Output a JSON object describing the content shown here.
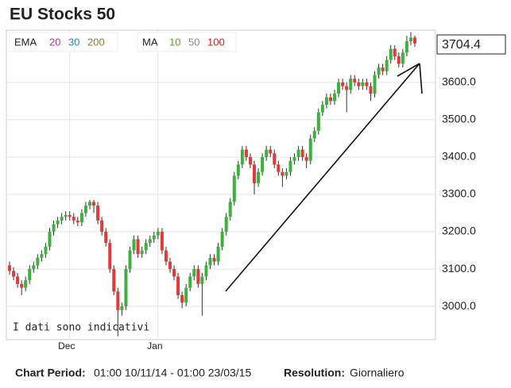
{
  "chart_data": {
    "type": "candlestick",
    "title": "EU Stocks 50",
    "categories": [
      null,
      null,
      null,
      null,
      null,
      null,
      null,
      null,
      null,
      null,
      null,
      null,
      null,
      null,
      null,
      "Dec",
      null,
      null,
      null,
      null,
      null,
      null,
      null,
      null,
      null,
      null,
      null,
      null,
      null,
      null,
      null,
      null,
      null,
      null,
      null,
      null,
      null,
      "Jan",
      null,
      null,
      null,
      null,
      null,
      null,
      null,
      null,
      null,
      null,
      null,
      null,
      null,
      null,
      null,
      null,
      null,
      null,
      null,
      null,
      null,
      null,
      null,
      null,
      null,
      null,
      null,
      null,
      null,
      null,
      null,
      null,
      null,
      null,
      null,
      null,
      null,
      null,
      null,
      null,
      null,
      null,
      null,
      null,
      null,
      null,
      null,
      null,
      null,
      null,
      null,
      null,
      null,
      null,
      null,
      null,
      null,
      null,
      null,
      null,
      null,
      null,
      null,
      null
    ],
    "open": [
      3110,
      3095,
      3080,
      3060,
      3050,
      3070,
      3100,
      3110,
      3130,
      3140,
      3160,
      3200,
      3220,
      3230,
      3240,
      3245,
      3240,
      3230,
      3225,
      3250,
      3270,
      3280,
      3270,
      3230,
      3200,
      3170,
      3100,
      3040,
      2990,
      3000,
      3100,
      3150,
      3180,
      3140,
      3150,
      3170,
      3180,
      3190,
      3200,
      3150,
      3120,
      3100,
      3080,
      3030,
      3010,
      3050,
      3080,
      3100,
      3060,
      3080,
      3110,
      3130,
      3120,
      3160,
      3200,
      3240,
      3280,
      3350,
      3380,
      3420,
      3400,
      3380,
      3330,
      3360,
      3400,
      3420,
      3410,
      3380,
      3360,
      3350,
      3360,
      3390,
      3400,
      3420,
      3400,
      3390,
      3450,
      3470,
      3520,
      3540,
      3560,
      3550,
      3570,
      3600,
      3590,
      3580,
      3610,
      3600,
      3590,
      3600,
      3590,
      3570,
      3620,
      3640,
      3630,
      3660,
      3690,
      3670,
      3650,
      3680,
      3710,
      3720
    ],
    "high": [
      3120,
      3105,
      3090,
      3070,
      3080,
      3110,
      3120,
      3140,
      3150,
      3170,
      3210,
      3230,
      3240,
      3250,
      3255,
      3255,
      3250,
      3240,
      3260,
      3280,
      3285,
      3285,
      3280,
      3240,
      3210,
      3180,
      3110,
      3050,
      3010,
      3110,
      3160,
      3190,
      3190,
      3160,
      3180,
      3190,
      3200,
      3210,
      3210,
      3160,
      3130,
      3110,
      3090,
      3040,
      3060,
      3090,
      3110,
      3110,
      3090,
      3120,
      3140,
      3140,
      3170,
      3210,
      3250,
      3290,
      3360,
      3390,
      3430,
      3430,
      3410,
      3390,
      3370,
      3410,
      3430,
      3430,
      3420,
      3390,
      3370,
      3370,
      3400,
      3410,
      3430,
      3430,
      3410,
      3460,
      3480,
      3530,
      3550,
      3570,
      3570,
      3580,
      3610,
      3610,
      3600,
      3620,
      3620,
      3610,
      3610,
      3610,
      3600,
      3630,
      3650,
      3650,
      3670,
      3700,
      3700,
      3680,
      3690,
      3725,
      3735,
      3725
    ],
    "low": [
      3085,
      3070,
      3050,
      3030,
      3040,
      3060,
      3090,
      3100,
      3120,
      3130,
      3150,
      3190,
      3210,
      3220,
      3230,
      3230,
      3220,
      3215,
      3215,
      3240,
      3260,
      3250,
      3220,
      3190,
      3160,
      3090,
      3030,
      2920,
      2975,
      2990,
      3090,
      3140,
      3130,
      3130,
      3140,
      3160,
      3170,
      3180,
      3140,
      3110,
      3090,
      3070,
      3020,
      2995,
      3000,
      3040,
      3070,
      3050,
      2975,
      3070,
      3100,
      3110,
      3110,
      3150,
      3190,
      3230,
      3270,
      3340,
      3370,
      3390,
      3370,
      3300,
      3320,
      3350,
      3390,
      3400,
      3370,
      3350,
      3320,
      3340,
      3350,
      3380,
      3390,
      3390,
      3370,
      3380,
      3440,
      3460,
      3510,
      3530,
      3540,
      3540,
      3560,
      3580,
      3520,
      3570,
      3590,
      3580,
      3580,
      3580,
      3550,
      3560,
      3610,
      3620,
      3620,
      3650,
      3660,
      3640,
      3640,
      3670,
      3700,
      3695
    ],
    "close": [
      3095,
      3080,
      3060,
      3050,
      3070,
      3100,
      3110,
      3130,
      3140,
      3160,
      3200,
      3220,
      3230,
      3240,
      3245,
      3240,
      3230,
      3225,
      3250,
      3270,
      3280,
      3270,
      3230,
      3200,
      3170,
      3100,
      3040,
      2990,
      3000,
      3100,
      3150,
      3180,
      3140,
      3150,
      3170,
      3180,
      3190,
      3200,
      3150,
      3120,
      3100,
      3080,
      3030,
      3010,
      3050,
      3080,
      3100,
      3060,
      3080,
      3110,
      3130,
      3120,
      3160,
      3200,
      3240,
      3280,
      3350,
      3380,
      3420,
      3400,
      3380,
      3330,
      3360,
      3400,
      3420,
      3410,
      3380,
      3360,
      3350,
      3360,
      3390,
      3400,
      3420,
      3400,
      3390,
      3450,
      3470,
      3520,
      3540,
      3560,
      3550,
      3570,
      3600,
      3590,
      3580,
      3610,
      3600,
      3590,
      3600,
      3590,
      3570,
      3620,
      3640,
      3630,
      3660,
      3690,
      3670,
      3650,
      3680,
      3710,
      3720,
      3704.4
    ],
    "up_color": "#3db03d",
    "down_color": "#e03a3a",
    "ylim": [
      2911,
      3740
    ],
    "yticks": [
      {
        "value": 3000,
        "label": "3000.0"
      },
      {
        "value": 3100,
        "label": "3100.0"
      },
      {
        "value": 3200,
        "label": "3200.0"
      },
      {
        "value": 3300,
        "label": "3300.0"
      },
      {
        "value": 3400,
        "label": "3400.0"
      },
      {
        "value": 3500,
        "label": "3500.0"
      },
      {
        "value": 3600,
        "label": "3600.0"
      }
    ],
    "grid": true,
    "legend": [
      {
        "name": "EMA",
        "items": [
          {
            "label": "20",
            "color": "#c0308a"
          },
          {
            "label": "30",
            "color": "#2b8aa8"
          },
          {
            "label": "200",
            "color": "#8a7a3a"
          }
        ]
      },
      {
        "name": "MA",
        "items": [
          {
            "label": "10",
            "color": "#5aa02c"
          },
          {
            "label": "50",
            "color": "#888888"
          },
          {
            "label": "100",
            "color": "#d02020"
          }
        ]
      }
    ],
    "annotation": "I dati sono indicativi",
    "footer": {
      "period_label": "Chart Period:",
      "period": "01:00 10/11/14 - 01:00 23/03/15",
      "resolution_label": "Resolution:",
      "resolution": "Giornaliero"
    }
  }
}
